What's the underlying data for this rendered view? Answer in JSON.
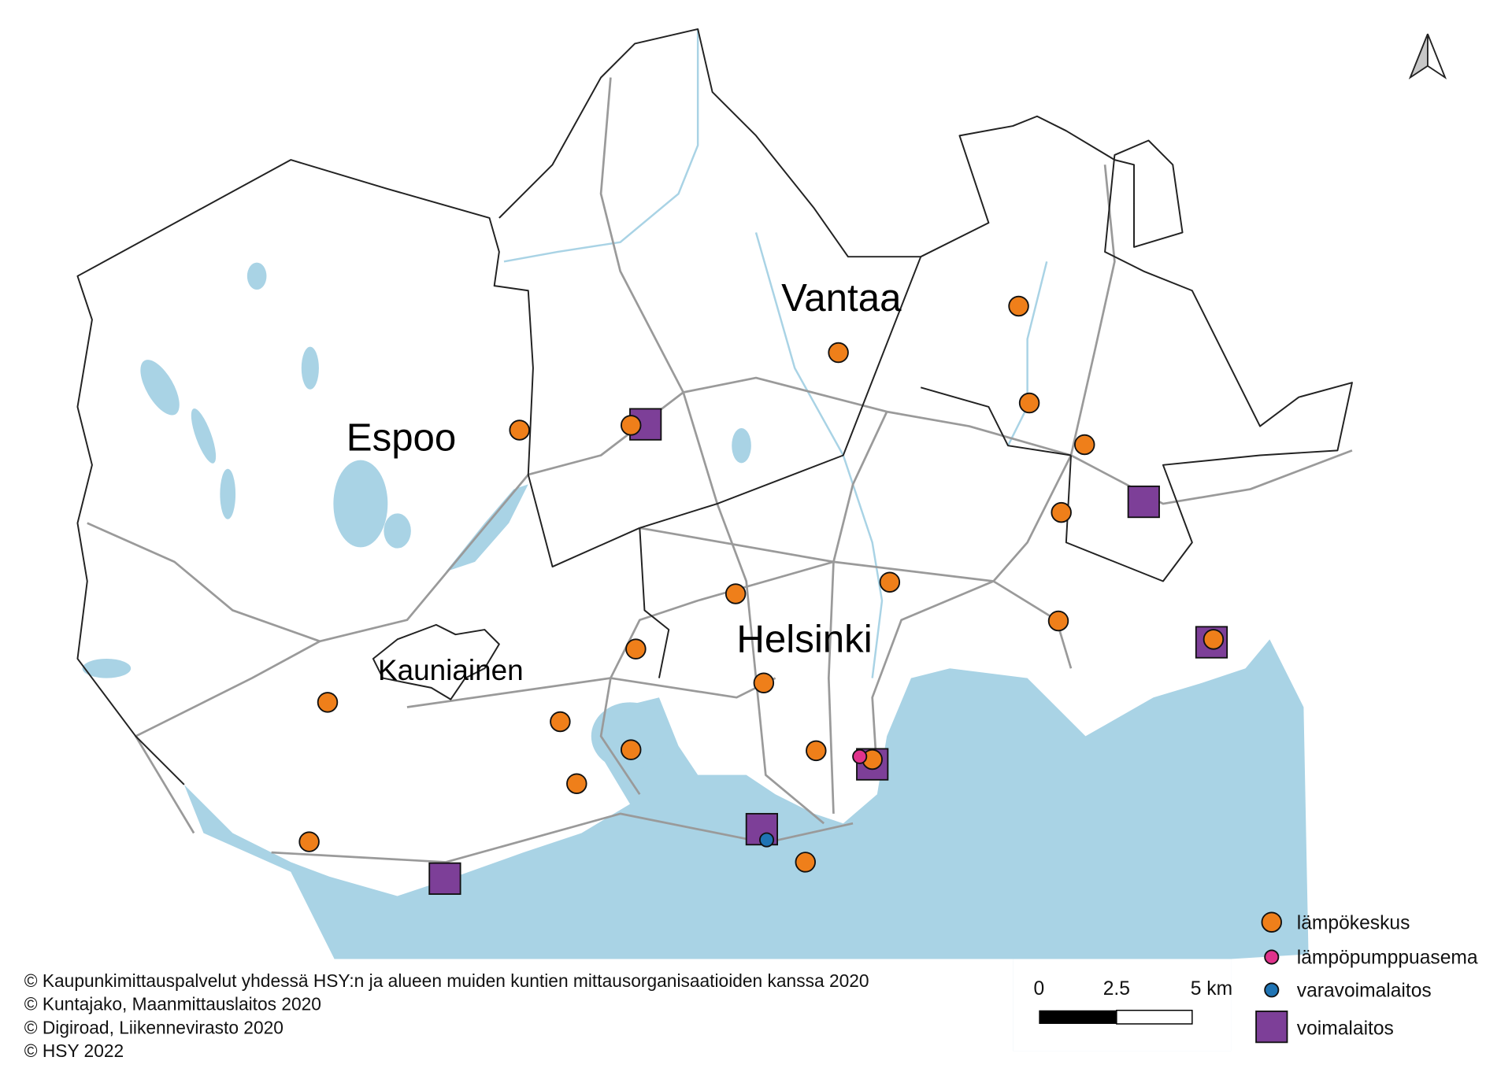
{
  "map": {
    "places": [
      "Vantaa",
      "Espoo",
      "Helsinki",
      "Kauniainen"
    ],
    "legend": [
      "lämpökeskus",
      "lämpöpumppuasema",
      "varavoimalaitos",
      "voimalaitos"
    ],
    "scale_bar": [
      "0",
      "2.5",
      "5 km"
    ],
    "credits": [
      "© Kaupunkimittauspalvelut yhdessä HSY:n ja alueen muiden kuntien mittausorganisaatioiden kanssa 2020",
      "© Kuntajako, Maanmittauslaitos 2020",
      "© Digiroad, Liikennevirasto 2020",
      "© HSY 2022"
    ]
  }
}
